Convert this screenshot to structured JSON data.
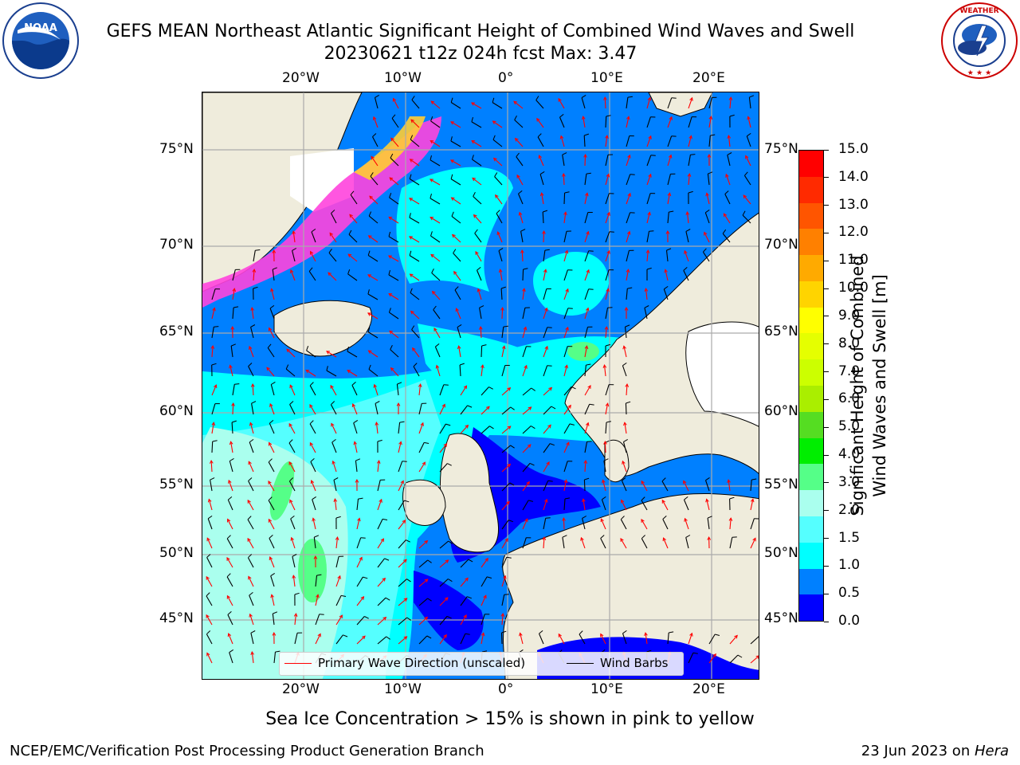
{
  "header": {
    "title": "GEFS MEAN Northeast Atlantic Significant Height of Combined Wind Waves and Swell",
    "subtitle": "20230621 t12z 024h fcst   Max: 3.47"
  },
  "logos": {
    "noaa": {
      "text": "NOAA",
      "ring_text": "NATIONAL OCEANIC AND ATMOSPHERIC ADMINISTRATION · U.S. DEPARTMENT OF COMMERCE"
    },
    "nws": {
      "ring_text": "NATIONAL WEATHER SERVICE"
    }
  },
  "axes": {
    "lon_ticks_top": [
      "20°W",
      "10°W",
      "0°",
      "10°E",
      "20°E"
    ],
    "lon_ticks_bottom": [
      "20°W",
      "10°W",
      "0°",
      "10°E",
      "20°E"
    ],
    "lat_ticks_left": [
      "75°N",
      "70°N",
      "65°N",
      "60°N",
      "55°N",
      "50°N",
      "45°N"
    ],
    "lat_ticks_right": [
      "75°N",
      "70°N",
      "65°N",
      "60°N",
      "55°N",
      "50°N",
      "45°N"
    ]
  },
  "legend": {
    "primary_wave": "Primary Wave Direction (unscaled)",
    "wind_barbs": "Wind Barbs",
    "primary_wave_color": "#ff0000",
    "wind_barbs_color": "#000000"
  },
  "colorbar": {
    "label_line1": "Significant Height of Combined",
    "label_line2": "Wind Waves and Swell [m]",
    "ticks": [
      "15.0",
      "14.0",
      "13.0",
      "12.0",
      "11.0",
      "10.0",
      "9.0",
      "8.0",
      "7.0",
      "6.0",
      "5.0",
      "4.0",
      "3.0",
      "2.0",
      "1.5",
      "1.0",
      "0.5",
      "0.0"
    ],
    "colors": [
      "#ff0000",
      "#ff2a00",
      "#ff5500",
      "#ff8000",
      "#ffaa00",
      "#ffd400",
      "#ffff00",
      "#e5ff00",
      "#ccff00",
      "#aaee00",
      "#55dd22",
      "#00ee00",
      "#55ff88",
      "#aaffee",
      "#55ffff",
      "#00ffff",
      "#0080ff",
      "#0000ff"
    ]
  },
  "map": {
    "ocean_deep": "#0000ff",
    "ocean_1m": "#0080ff",
    "ocean_15m": "#00ffff",
    "ocean_2m": "#55ffff",
    "ocean_3m": "#aaffee",
    "wave_4m": "#55ff88",
    "land": "#efecdc",
    "ice_pink": "#ff44dd",
    "ice_yellow": "#ffcc33",
    "grid": "#aaaaaa"
  },
  "caption": "Sea Ice Concentration > 15% is shown in pink to yellow",
  "footer": {
    "left": "NCEP/EMC/Verification Post Processing Product Generation Branch",
    "right_prefix": "23 Jun 2023 on ",
    "right_host": "Hera"
  }
}
